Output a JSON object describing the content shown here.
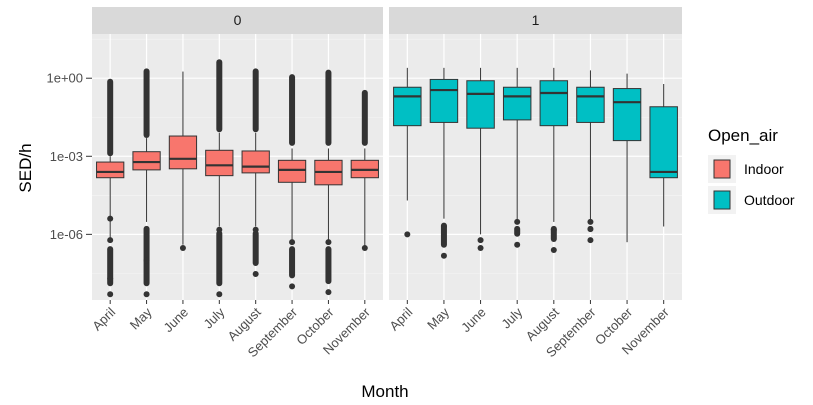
{
  "chart_data": {
    "type": "boxplot",
    "xlabel": "Month",
    "ylabel": "SED/h",
    "y_scale": "log10",
    "ylim": [
      3e-09,
      50
    ],
    "y_ticks": [
      {
        "value": 1,
        "label": "1e+00"
      },
      {
        "value": 0.001,
        "label": "1e-03"
      },
      {
        "value": 1e-06,
        "label": "1e-06"
      }
    ],
    "categories": [
      "April",
      "May",
      "June",
      "July",
      "August",
      "September",
      "October",
      "November"
    ],
    "legend": {
      "title": "Open_air",
      "placement": "right",
      "items": [
        {
          "label": "Indoor",
          "color": "#F8766D"
        },
        {
          "label": "Outdoor",
          "color": "#00BFC4"
        }
      ]
    },
    "panels": [
      {
        "strip": "0",
        "fill": "#F8766D",
        "boxes": [
          {
            "month": "April",
            "whisker_low": 5e-07,
            "q1": 0.00015,
            "median": 0.00025,
            "q3": 0.0006,
            "whisker_high": 0.001,
            "outliers_low": [
              4e-06,
              6e-07,
              2e-08,
              5e-09
            ],
            "outliers_high_range": [
              0.0012,
              0.8
            ]
          },
          {
            "month": "May",
            "whisker_low": 3e-06,
            "q1": 0.0003,
            "median": 0.0006,
            "q3": 0.0015,
            "whisker_high": 0.005,
            "outliers_low": [
              1e-07,
              5e-09
            ],
            "outliers_high_range": [
              0.006,
              2
            ]
          },
          {
            "month": "June",
            "whisker_low": 4e-07,
            "q1": 0.00033,
            "median": 0.0008,
            "q3": 0.006,
            "whisker_high": 1.8,
            "outliers_low": [
              3e-07
            ],
            "outliers_high_range": []
          },
          {
            "month": "July",
            "whisker_low": 2e-06,
            "q1": 0.00018,
            "median": 0.00045,
            "q3": 0.0017,
            "whisker_high": 0.008,
            "outliers_low": [
              5e-09,
              1.5e-06
            ],
            "outliers_high_range": [
              0.01,
              4.5
            ]
          },
          {
            "month": "August",
            "whisker_low": 2e-06,
            "q1": 0.00023,
            "median": 0.0004,
            "q3": 0.0016,
            "whisker_high": 0.008,
            "outliers_low": [
              3e-08,
              1.5e-06
            ],
            "outliers_high_range": [
              0.01,
              2
            ]
          },
          {
            "month": "September",
            "whisker_low": 5e-07,
            "q1": 0.0001,
            "median": 0.0003,
            "q3": 0.0007,
            "whisker_high": 0.002,
            "outliers_low": [
              1e-08,
              5e-07
            ],
            "outliers_high_range": [
              0.003,
              1.2
            ]
          },
          {
            "month": "October",
            "whisker_low": 5e-07,
            "q1": 8e-05,
            "median": 0.00025,
            "q3": 0.0007,
            "whisker_high": 0.002,
            "outliers_low": [
              6e-09,
              5e-07
            ],
            "outliers_high_range": [
              0.003,
              1.8
            ]
          },
          {
            "month": "November",
            "whisker_low": 3e-07,
            "q1": 0.00015,
            "median": 0.0003,
            "q3": 0.0007,
            "whisker_high": 0.002,
            "outliers_low": [
              3e-07
            ],
            "outliers_high_range": [
              0.003,
              0.3
            ]
          }
        ]
      },
      {
        "strip": "1",
        "fill": "#00BFC4",
        "boxes": [
          {
            "month": "April",
            "whisker_low": 2e-05,
            "q1": 0.015,
            "median": 0.2,
            "q3": 0.45,
            "whisker_high": 2.5,
            "outliers_low": [
              1e-06
            ],
            "outliers_high_range": []
          },
          {
            "month": "May",
            "whisker_low": 4e-06,
            "q1": 0.02,
            "median": 0.35,
            "q3": 0.9,
            "whisker_high": 2.5,
            "outliers_low": [
              1.5e-07,
              2e-06
            ],
            "outliers_high_range": []
          },
          {
            "month": "June",
            "whisker_low": 1e-06,
            "q1": 0.012,
            "median": 0.25,
            "q3": 0.8,
            "whisker_high": 2.5,
            "outliers_low": [
              3e-07,
              6e-07
            ],
            "outliers_high_range": []
          },
          {
            "month": "July",
            "whisker_low": 3e-06,
            "q1": 0.025,
            "median": 0.2,
            "q3": 0.45,
            "whisker_high": 2.5,
            "outliers_low": [
              4e-07,
              3e-06
            ],
            "outliers_high_range": []
          },
          {
            "month": "August",
            "whisker_low": 3e-06,
            "q1": 0.015,
            "median": 0.27,
            "q3": 0.8,
            "whisker_high": 2.5,
            "outliers_low": [
              2.5e-07,
              1.5e-06
            ],
            "outliers_high_range": []
          },
          {
            "month": "September",
            "whisker_low": 3e-06,
            "q1": 0.02,
            "median": 0.2,
            "q3": 0.45,
            "whisker_high": 2,
            "outliers_low": [
              6e-07,
              3e-06
            ],
            "outliers_high_range": []
          },
          {
            "month": "October",
            "whisker_low": 5e-07,
            "q1": 0.004,
            "median": 0.12,
            "q3": 0.4,
            "whisker_high": 1.5,
            "outliers_low": [],
            "outliers_high_range": []
          },
          {
            "month": "November",
            "whisker_low": 2e-06,
            "q1": 0.00015,
            "median": 0.00025,
            "q3": 0.08,
            "whisker_high": 0.6,
            "outliers_low": [],
            "outliers_high_range": []
          }
        ]
      }
    ]
  }
}
